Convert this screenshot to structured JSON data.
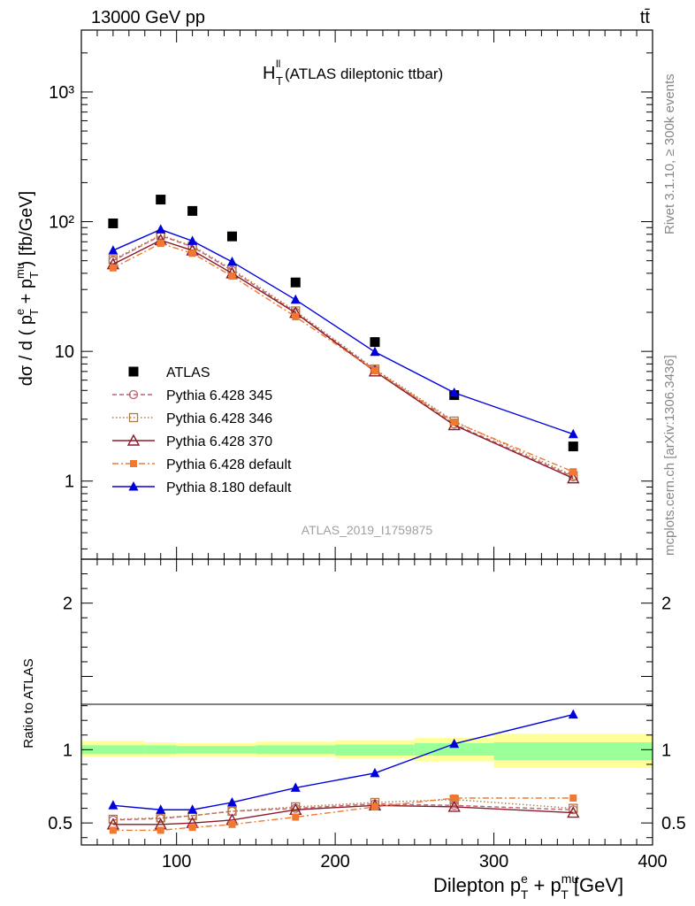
{
  "header": {
    "energy_label": "13000 GeV pp",
    "process_label": "tt̄",
    "plot_title_main": "H",
    "plot_title_sup": "ll",
    "plot_title_sub": "T",
    "plot_title_rest": " (ATLAS dileptonic ttbar)",
    "side_label_top": "Rivet 3.1.10, ≥ 300k events",
    "side_label_bottom": "mcplots.cern.ch [arXiv:1306.3436]",
    "analysis_id": "ATLAS_2019_I1759875"
  },
  "chart_data": [
    {
      "type": "line",
      "panel": "main",
      "y_scale": "log",
      "ylim": [
        0.25,
        3000
      ],
      "xlim": [
        40,
        400
      ],
      "ylabel": "dσ / d ( p^e_T + p^mu_T ) [fb/GeV]",
      "y_tick_labels": [
        {
          "value": 1,
          "label": "1"
        },
        {
          "value": 10,
          "label": "10"
        },
        {
          "value": 100,
          "label": "10²"
        },
        {
          "value": 1000,
          "label": "10³"
        }
      ],
      "x": [
        60,
        90,
        110,
        135,
        175,
        225,
        275,
        350
      ],
      "series": [
        {
          "name": "ATLAS",
          "color": "#000000",
          "marker": "square-filled",
          "line": "none",
          "values": [
            97,
            148,
            121,
            77,
            34,
            11.8,
            4.6,
            1.85
          ]
        },
        {
          "name": "Pythia 6.428 345",
          "color": "#c06070",
          "marker": "circle-open",
          "line": "dashed",
          "values": [
            50,
            78,
            64,
            42,
            20,
            7.2,
            2.75,
            1.08
          ]
        },
        {
          "name": "Pythia 6.428 346",
          "color": "#b07a40",
          "marker": "square-open",
          "line": "dotted",
          "values": [
            51,
            79,
            65,
            43,
            20.5,
            7.3,
            2.9,
            1.1
          ]
        },
        {
          "name": "Pythia 6.428 370",
          "color": "#8b1a2a",
          "marker": "triangle-open",
          "line": "solid",
          "values": [
            47,
            72,
            60,
            40,
            19.8,
            7.0,
            2.7,
            1.05
          ]
        },
        {
          "name": "Pythia 6.428 default",
          "color": "#f07830",
          "marker": "square-small",
          "line": "dashdot",
          "values": [
            44,
            68,
            57,
            38,
            18.5,
            7.1,
            2.85,
            1.18
          ]
        },
        {
          "name": "Pythia 8.180 default",
          "color": "#0000dd",
          "marker": "triangle-filled",
          "line": "solid",
          "values": [
            60,
            87,
            71,
            49,
            25,
            9.9,
            4.8,
            2.3
          ]
        }
      ]
    },
    {
      "type": "line",
      "panel": "ratio",
      "ylim": [
        0.35,
        2.3
      ],
      "xlim": [
        40,
        400
      ],
      "ylabel": "Ratio to ATLAS",
      "xlabel": "Dilepton p^e_T + p^mu_T [GeV]",
      "y_tick_labels": [
        {
          "value": 0.5,
          "label": "0.5"
        },
        {
          "value": 1,
          "label": "1"
        },
        {
          "value": 2,
          "label": "2"
        }
      ],
      "x_tick_labels": [
        {
          "value": 100,
          "label": "100"
        },
        {
          "value": 200,
          "label": "200"
        },
        {
          "value": 300,
          "label": "300"
        },
        {
          "value": 400,
          "label": "400"
        }
      ],
      "band_edges": [
        40,
        80,
        100,
        120,
        150,
        200,
        250,
        300,
        400
      ],
      "band_inner": [
        [
          0.97,
          1.03
        ],
        [
          0.97,
          1.03
        ],
        [
          0.975,
          1.025
        ],
        [
          0.975,
          1.025
        ],
        [
          0.97,
          1.03
        ],
        [
          0.96,
          1.035
        ],
        [
          0.96,
          1.045
        ],
        [
          0.93,
          1.05
        ]
      ],
      "band_outer": [
        [
          0.95,
          1.06
        ],
        [
          0.95,
          1.05
        ],
        [
          0.955,
          1.045
        ],
        [
          0.955,
          1.045
        ],
        [
          0.95,
          1.055
        ],
        [
          0.94,
          1.065
        ],
        [
          0.92,
          1.08
        ],
        [
          0.875,
          1.11
        ]
      ],
      "x": [
        60,
        90,
        110,
        135,
        175,
        225,
        275,
        350
      ],
      "series": [
        {
          "name": "Pythia 6.428 345",
          "color": "#c06070",
          "marker": "circle-open",
          "line": "dashed",
          "values": [
            0.52,
            0.53,
            0.55,
            0.58,
            0.6,
            0.63,
            0.62,
            0.59
          ]
        },
        {
          "name": "Pythia 6.428 346",
          "color": "#b07a40",
          "marker": "square-open",
          "line": "dotted",
          "values": [
            0.525,
            0.535,
            0.55,
            0.58,
            0.61,
            0.64,
            0.66,
            0.6
          ]
        },
        {
          "name": "Pythia 6.428 370",
          "color": "#8b1a2a",
          "marker": "triangle-open",
          "line": "solid",
          "values": [
            0.49,
            0.49,
            0.5,
            0.52,
            0.59,
            0.62,
            0.61,
            0.57
          ]
        },
        {
          "name": "Pythia 6.428 default",
          "color": "#f07830",
          "marker": "square-small",
          "line": "dashdot",
          "values": [
            0.45,
            0.45,
            0.47,
            0.49,
            0.54,
            0.61,
            0.67,
            0.67
          ]
        },
        {
          "name": "Pythia 8.180 default",
          "color": "#0000dd",
          "marker": "triangle-filled",
          "line": "solid",
          "values": [
            0.62,
            0.59,
            0.59,
            0.64,
            0.74,
            0.84,
            1.04,
            1.24
          ]
        }
      ]
    }
  ]
}
